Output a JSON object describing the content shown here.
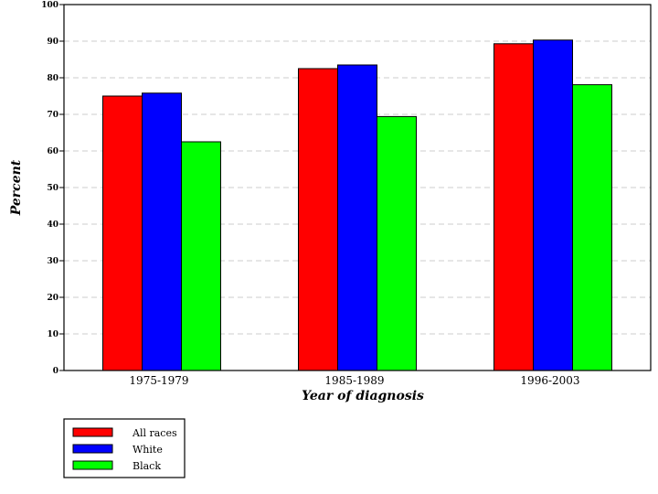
{
  "chart_data": {
    "type": "bar",
    "title": "",
    "xlabel": "Year of diagnosis",
    "ylabel": "Percent",
    "ylim": [
      0,
      100
    ],
    "yticks": [
      0,
      10,
      20,
      30,
      40,
      50,
      60,
      70,
      80,
      90,
      100
    ],
    "grid": true,
    "legend_position": "bottom-left",
    "categories": [
      "1975-1979",
      "1985-1989",
      "1996-2003"
    ],
    "series": [
      {
        "name": "All races",
        "color": "#ff0000",
        "values": [
          75,
          82.5,
          89.3
        ]
      },
      {
        "name": "White",
        "color": "#0000ff",
        "values": [
          75.8,
          83.5,
          90.3
        ]
      },
      {
        "name": "Black",
        "color": "#00ff00",
        "values": [
          62.5,
          69.4,
          78.1
        ]
      }
    ]
  }
}
